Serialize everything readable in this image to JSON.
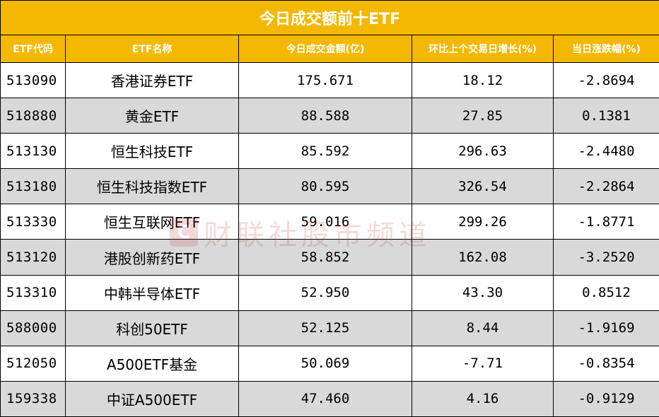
{
  "title": "今日成交额前十ETF",
  "headers": [
    "ETF代码",
    "ETF名称",
    "今日成交金额(亿)",
    "环比上个交易日增长(%)",
    "当日涨跌幅(%)"
  ],
  "rows": [
    {
      "code": "513090",
      "name": "香港证券ETF",
      "turnover": "175.671",
      "growth": "18.12",
      "change": "-2.8694"
    },
    {
      "code": "518880",
      "name": "黄金ETF",
      "turnover": "88.588",
      "growth": "27.85",
      "change": "0.1381"
    },
    {
      "code": "513130",
      "name": "恒生科技ETF",
      "turnover": "85.592",
      "growth": "296.63",
      "change": "-2.4480"
    },
    {
      "code": "513180",
      "name": "恒生科技指数ETF",
      "turnover": "80.595",
      "growth": "326.54",
      "change": "-2.2864"
    },
    {
      "code": "513330",
      "name": "恒生互联网ETF",
      "turnover": "59.016",
      "growth": "299.26",
      "change": "-1.8771"
    },
    {
      "code": "513120",
      "name": "港股创新药ETF",
      "turnover": "58.852",
      "growth": "162.08",
      "change": "-3.2520"
    },
    {
      "code": "513310",
      "name": "中韩半导体ETF",
      "turnover": "52.950",
      "growth": "43.30",
      "change": "0.8512"
    },
    {
      "code": "588000",
      "name": "科创50ETF",
      "turnover": "52.125",
      "growth": "8.44",
      "change": "-1.9169"
    },
    {
      "code": "512050",
      "name": "A500ETF基金",
      "turnover": "50.069",
      "growth": "-7.71",
      "change": "-0.8354"
    },
    {
      "code": "159338",
      "name": "中证A500ETF",
      "turnover": "47.460",
      "growth": "4.16",
      "change": "-0.9129"
    }
  ],
  "watermark": "财联社股市频道",
  "colors": {
    "header_bg": "#F5B800",
    "header_text": "#FFFFFF",
    "alt_row_bg": "#D9D9D9"
  }
}
